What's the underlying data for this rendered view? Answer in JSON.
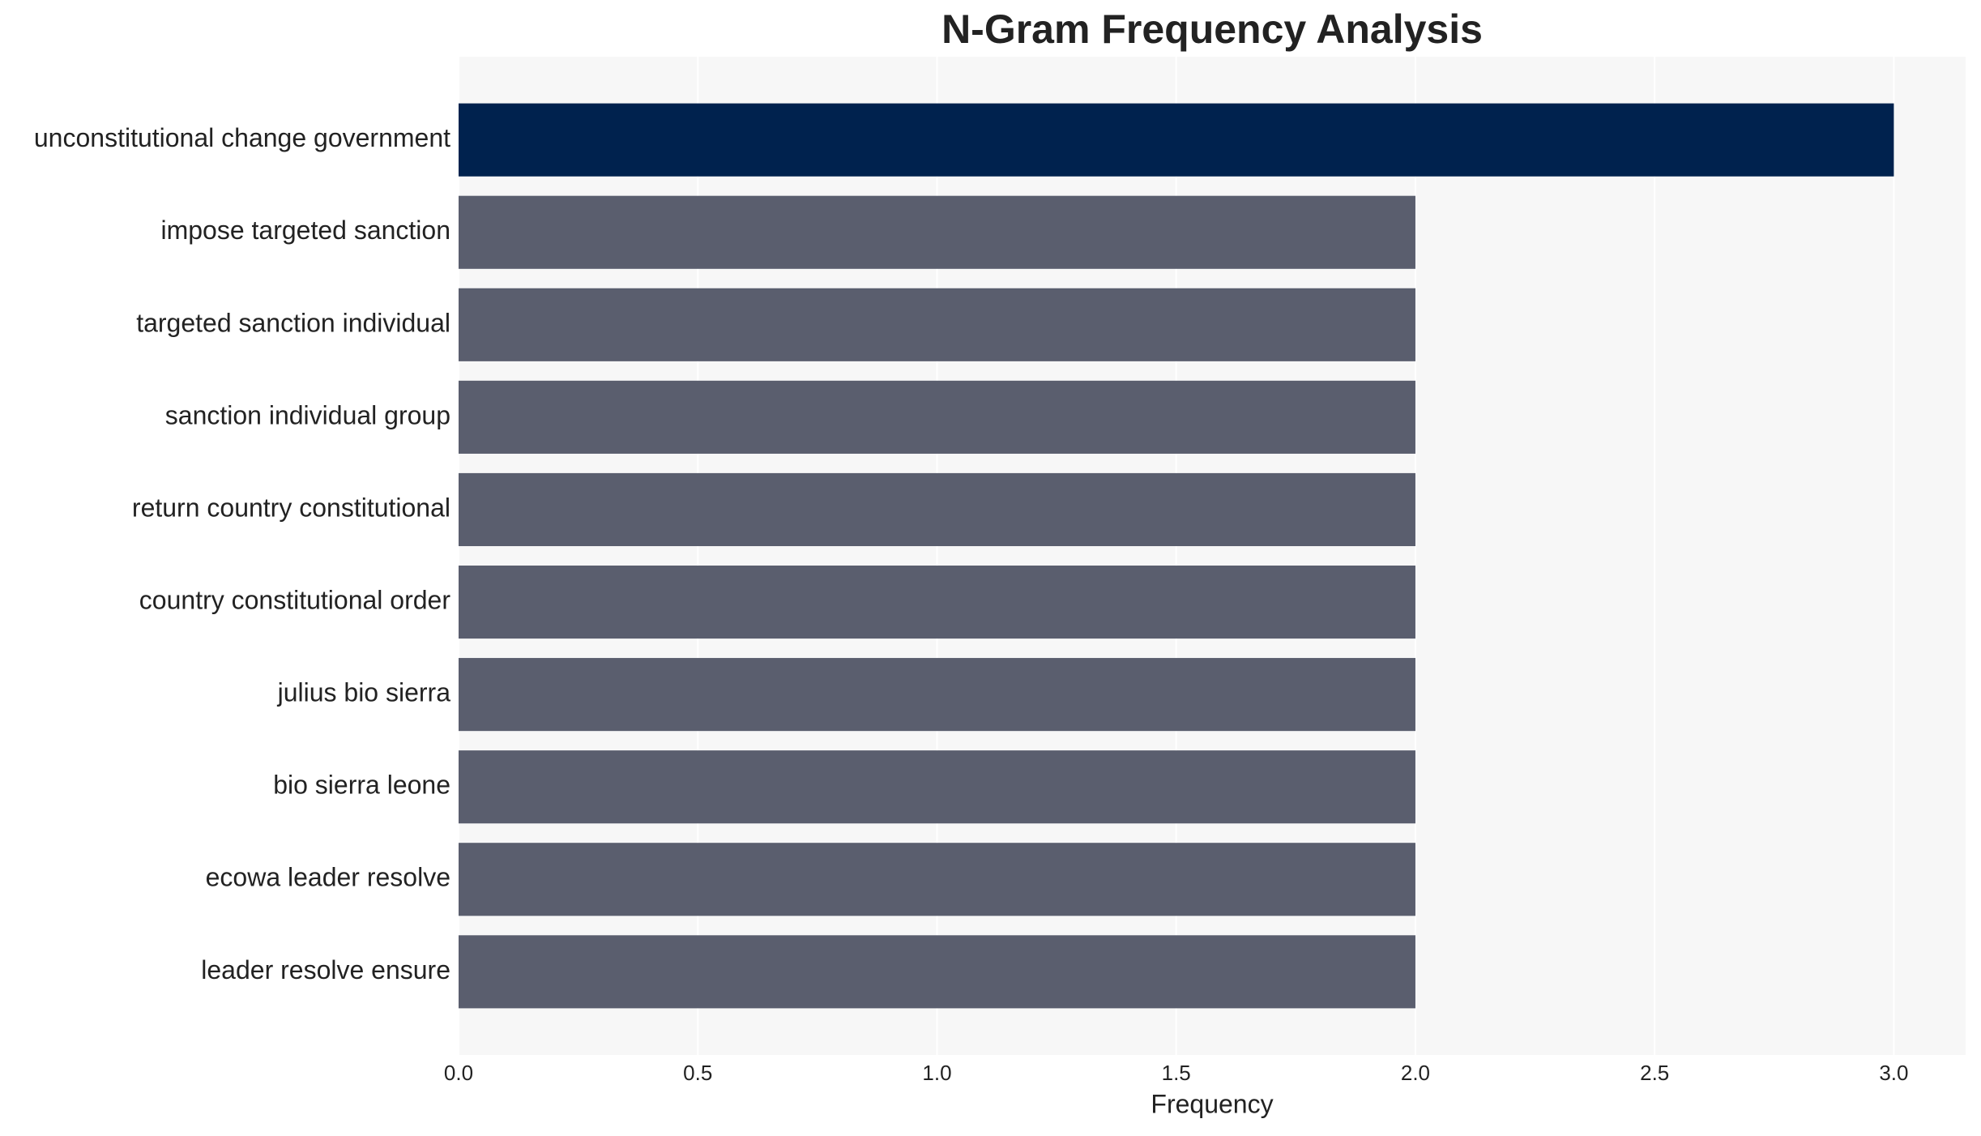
{
  "chart_data": {
    "type": "barh",
    "title": "N-Gram Frequency Analysis",
    "xlabel": "Frequency",
    "categories": [
      "unconstitutional change government",
      "impose targeted sanction",
      "targeted sanction individual",
      "sanction individual group",
      "return country constitutional",
      "country constitutional order",
      "julius bio sierra",
      "bio sierra leone",
      "ecowa leader resolve",
      "leader resolve ensure"
    ],
    "values": [
      3,
      2,
      2,
      2,
      2,
      2,
      2,
      2,
      2,
      2
    ],
    "colors": [
      "#00224e",
      "#5a5e6e",
      "#5a5e6e",
      "#5a5e6e",
      "#5a5e6e",
      "#5a5e6e",
      "#5a5e6e",
      "#5a5e6e",
      "#5a5e6e",
      "#5a5e6e"
    ],
    "xlim": [
      0,
      3.15
    ],
    "xticks": [
      {
        "value": 0,
        "label": "0.0"
      },
      {
        "value": 0.5,
        "label": "0.5"
      },
      {
        "value": 1,
        "label": "1.0"
      },
      {
        "value": 1.5,
        "label": "1.5"
      },
      {
        "value": 2,
        "label": "2.0"
      },
      {
        "value": 2.5,
        "label": "2.5"
      },
      {
        "value": 3,
        "label": "3.0"
      }
    ],
    "grid": true
  }
}
